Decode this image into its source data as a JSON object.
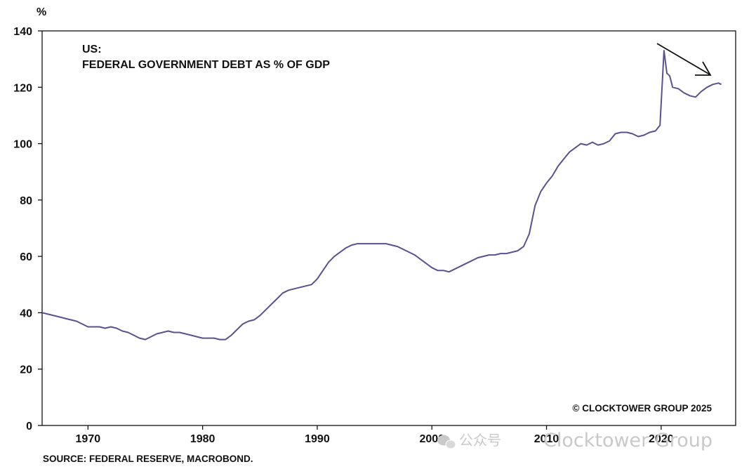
{
  "chart_data": {
    "type": "line",
    "title": "US:",
    "subtitle": "FEDERAL GOVERNMENT DEBT AS % OF GDP",
    "ylabel": "%",
    "xlabel": "",
    "ylim": [
      0,
      140
    ],
    "xlim": [
      1966,
      2026.5
    ],
    "y_ticks": [
      0,
      20,
      40,
      60,
      80,
      100,
      120,
      140
    ],
    "x_ticks": [
      1970,
      1980,
      1990,
      2000,
      2010,
      2020
    ],
    "grid": false,
    "line_color": "#5a5190",
    "series": [
      {
        "x": [
          1966,
          1966.5,
          1967,
          1967.5,
          1968,
          1968.5,
          1969,
          1969.5,
          1970,
          1970.5,
          1971,
          1971.5,
          1972,
          1972.5,
          1973,
          1973.5,
          1974,
          1974.5,
          1975,
          1975.5,
          1976,
          1976.5,
          1977,
          1977.5,
          1978,
          1978.5,
          1979,
          1979.5,
          1980,
          1980.5,
          1981,
          1981.5,
          1982,
          1982.5,
          1983,
          1983.5,
          1984,
          1984.5,
          1985,
          1985.5,
          1986,
          1986.5,
          1987,
          1987.5,
          1988,
          1988.5,
          1989,
          1989.5,
          1990,
          1990.5,
          1991,
          1991.5,
          1992,
          1992.5,
          1993,
          1993.5,
          1994,
          1994.5,
          1995,
          1995.5,
          1996,
          1996.5,
          1997,
          1997.5,
          1998,
          1998.5,
          1999,
          1999.5,
          2000,
          2000.5,
          2001,
          2001.5,
          2002,
          2002.5,
          2003,
          2003.5,
          2004,
          2004.5,
          2005,
          2005.5,
          2006,
          2006.5,
          2007,
          2007.5,
          2008,
          2008.5,
          2009,
          2009.5,
          2010,
          2010.5,
          2011,
          2011.5,
          2012,
          2012.5,
          2013,
          2013.5,
          2014,
          2014.5,
          2015,
          2015.5,
          2016,
          2016.5,
          2017,
          2017.5,
          2018,
          2018.5,
          2019,
          2019.5,
          2019.9,
          2020.25,
          2020.5,
          2020.75,
          2021,
          2021.5,
          2022,
          2022.5,
          2023,
          2023.5,
          2024,
          2024.5,
          2025,
          2025.25
        ],
        "values": [
          40,
          39.5,
          39,
          38.5,
          38,
          37.5,
          37,
          36,
          35,
          35,
          35,
          34.5,
          35,
          34.5,
          33.5,
          33,
          32,
          31,
          30.5,
          31.5,
          32.5,
          33,
          33.5,
          33,
          33,
          32.5,
          32,
          31.5,
          31,
          31,
          31,
          30.5,
          30.5,
          32,
          34,
          36,
          37,
          37.5,
          39,
          41,
          43,
          45,
          47,
          48,
          48.5,
          49,
          49.5,
          50,
          52,
          55,
          58,
          60,
          61.5,
          63,
          64,
          64.5,
          64.5,
          64.5,
          64.5,
          64.5,
          64.5,
          64,
          63.5,
          62.5,
          61.5,
          60.5,
          59,
          57.5,
          56,
          55,
          55,
          54.5,
          55.5,
          56.5,
          57.5,
          58.5,
          59.5,
          60,
          60.5,
          60.5,
          61,
          61,
          61.5,
          62,
          63.5,
          68,
          78,
          83,
          86,
          88.5,
          92,
          94.5,
          97,
          98.5,
          100,
          99.5,
          100.5,
          99.5,
          100,
          101,
          103.5,
          104,
          104,
          103.5,
          102.5,
          103,
          104,
          104.5,
          106.5,
          133,
          125,
          124,
          120,
          119.5,
          118,
          117,
          116.5,
          118.5,
          120,
          121,
          121.5,
          121
        ]
      }
    ],
    "annotations": [
      "© CLOCKTOWER GROUP 2025"
    ],
    "source": "SOURCE: FEDERAL RESERVE, MACROBOND."
  },
  "watermark": {
    "wechat_text": "公众号",
    "brand_text": "Clocktower Group"
  }
}
